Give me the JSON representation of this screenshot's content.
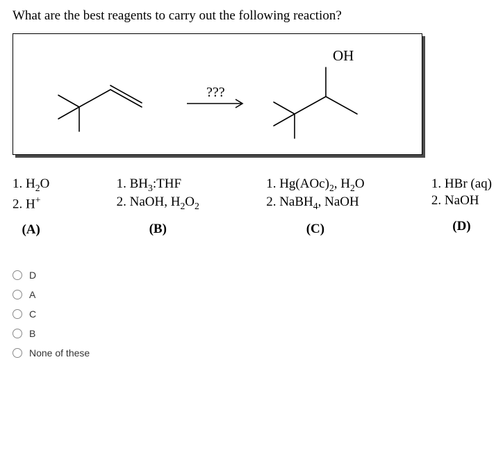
{
  "question": "What are the best reagents to carry out the following reaction?",
  "figure": {
    "arrow_label": "???",
    "product_label": "OH",
    "stroke": "#000000",
    "stroke_width": 1.6
  },
  "options": [
    {
      "letter": "(A)",
      "line1_html": "1. H<sub>2</sub>O",
      "line2_html": "2. H<sup>+</sup>"
    },
    {
      "letter": "(B)",
      "line1_html": "1. BH<sub>3</sub>:THF",
      "line2_html": "2. NaOH, H<sub>2</sub>O<sub>2</sub>"
    },
    {
      "letter": "(C)",
      "line1_html": "1. Hg(AOc)<sub>2</sub>, H<sub>2</sub>O",
      "line2_html": "2. NaBH<sub>4</sub>, NaOH"
    },
    {
      "letter": "(D)",
      "line1_html": "1. HBr (aq)",
      "line2_html": "2. NaOH"
    }
  ],
  "answers": [
    "D",
    "A",
    "C",
    "B",
    "None of these"
  ]
}
